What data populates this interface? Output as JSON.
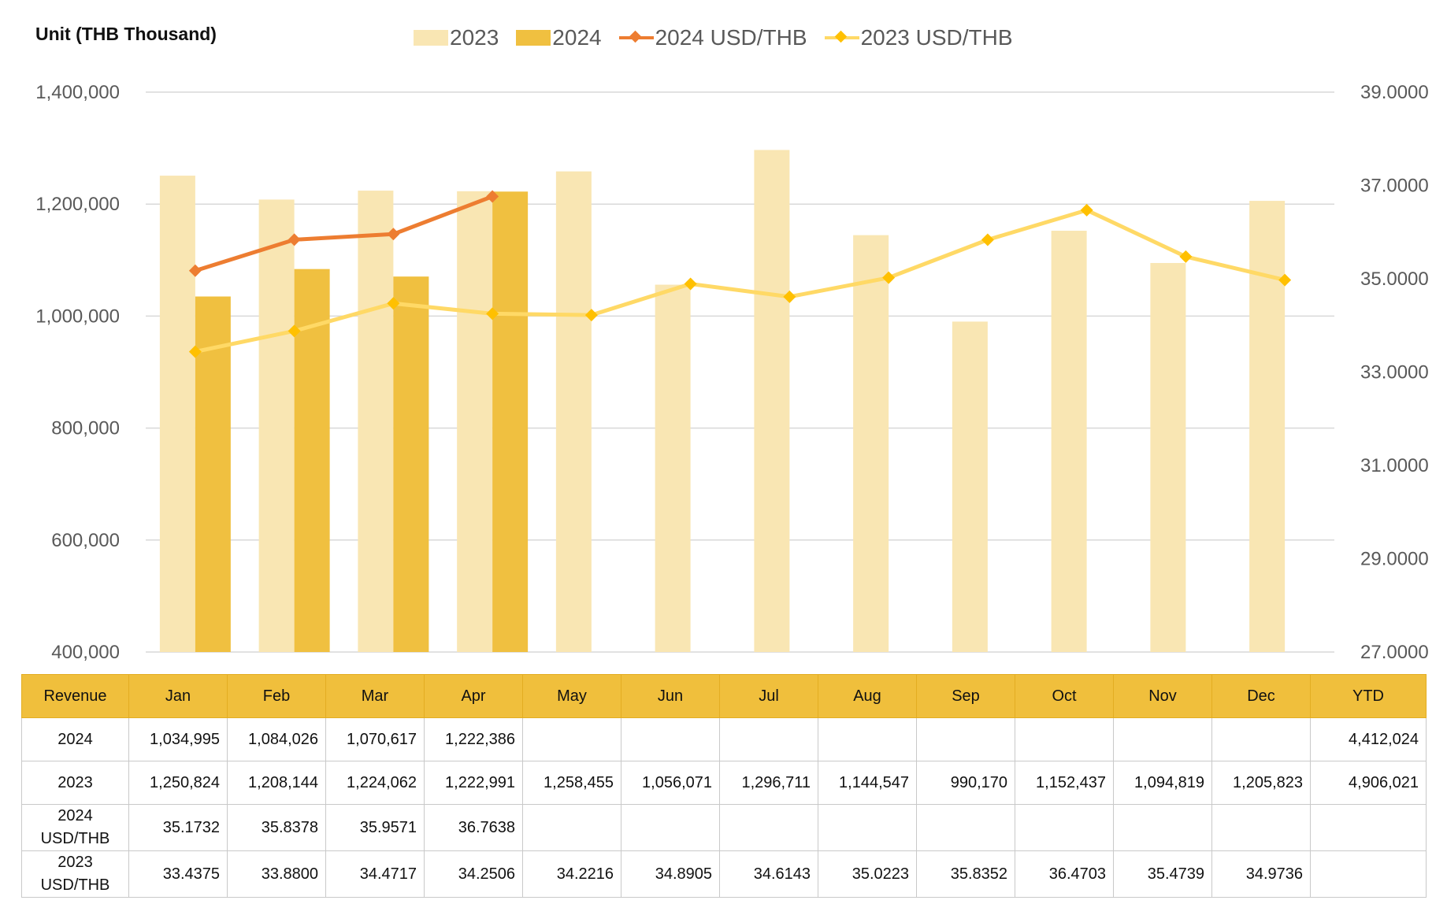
{
  "chart_data": {
    "type": "bar",
    "unit_label": "Unit (THB  Thousand)",
    "categories": [
      "Jan",
      "Feb",
      "Mar",
      "Apr",
      "May",
      "Jun",
      "Jul",
      "Aug",
      "Sep",
      "Oct",
      "Nov",
      "Dec"
    ],
    "series": [
      {
        "name": "2023",
        "type": "bar",
        "axis": "left",
        "color": "#f9e6b3",
        "values": [
          1250824,
          1208144,
          1224062,
          1222991,
          1258455,
          1056071,
          1296711,
          1144547,
          990170,
          1152437,
          1094819,
          1205823
        ]
      },
      {
        "name": "2024",
        "type": "bar",
        "axis": "left",
        "color": "#f0c040",
        "values": [
          1034995,
          1084026,
          1070617,
          1222386,
          null,
          null,
          null,
          null,
          null,
          null,
          null,
          null
        ]
      },
      {
        "name": "2024 USD/THB",
        "type": "line",
        "axis": "right",
        "color": "#ed7d31",
        "values": [
          35.1732,
          35.8378,
          35.9571,
          36.7638,
          null,
          null,
          null,
          null,
          null,
          null,
          null,
          null
        ]
      },
      {
        "name": "2023 USD/THB",
        "type": "line",
        "axis": "right",
        "color": "#ffc000",
        "line_color": "#ffd966",
        "values": [
          33.4375,
          33.88,
          34.4717,
          34.2506,
          34.2216,
          34.8905,
          34.6143,
          35.0223,
          35.8352,
          36.4703,
          35.4739,
          34.9736
        ]
      }
    ],
    "ylim": [
      400000,
      1400000
    ],
    "yticks": [
      "400,000",
      "600,000",
      "800,000",
      "1,000,000",
      "1,200,000",
      "1,400,000"
    ],
    "y2lim": [
      27.0,
      39.0
    ],
    "y2ticks": [
      "27.0000",
      "29.0000",
      "31.0000",
      "33.0000",
      "35.0000",
      "37.0000",
      "39.0000"
    ],
    "grid": true,
    "legend_position": "top"
  },
  "table": {
    "header": [
      "Revenue",
      "Jan",
      "Feb",
      "Mar",
      "Apr",
      "May",
      "Jun",
      "Jul",
      "Aug",
      "Sep",
      "Oct",
      "Nov",
      "Dec",
      "YTD"
    ],
    "rows": [
      {
        "label": [
          "2024"
        ],
        "cells": [
          "1,034,995",
          "1,084,026",
          "1,070,617",
          "1,222,386",
          "",
          "",
          "",
          "",
          "",
          "",
          "",
          "",
          "4,412,024"
        ]
      },
      {
        "label": [
          "2023"
        ],
        "cells": [
          "1,250,824",
          "1,208,144",
          "1,224,062",
          "1,222,991",
          "1,258,455",
          "1,056,071",
          "1,296,711",
          "1,144,547",
          "990,170",
          "1,152,437",
          "1,094,819",
          "1,205,823",
          "4,906,021"
        ]
      },
      {
        "label": [
          "2024",
          "USD/THB"
        ],
        "cells": [
          "35.1732",
          "35.8378",
          "35.9571",
          "36.7638",
          "",
          "",
          "",
          "",
          "",
          "",
          "",
          "",
          ""
        ]
      },
      {
        "label": [
          "2023",
          "USD/THB"
        ],
        "cells": [
          "33.4375",
          "33.8800",
          "34.4717",
          "34.2506",
          "34.2216",
          "34.8905",
          "34.6143",
          "35.0223",
          "35.8352",
          "36.4703",
          "35.4739",
          "34.9736",
          ""
        ]
      }
    ]
  }
}
